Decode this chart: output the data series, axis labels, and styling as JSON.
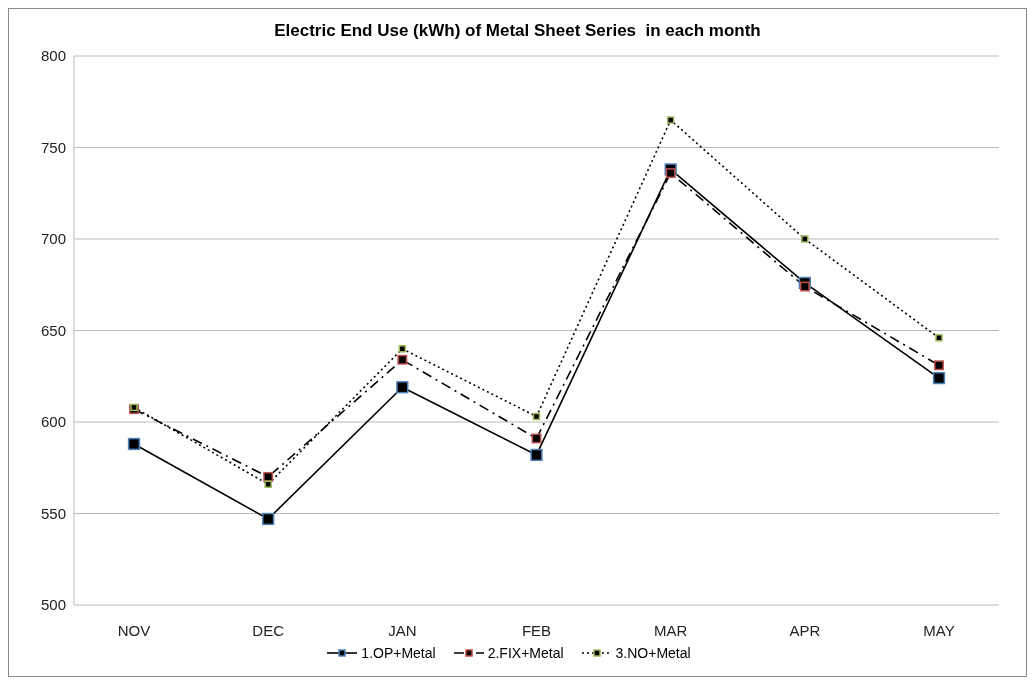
{
  "chart_data": {
    "type": "line",
    "title": "Electric End Use (kWh) of Metal Sheet Series  in each month",
    "categories": [
      "NOV",
      "DEC",
      "JAN",
      "FEB",
      "MAR",
      "APR",
      "MAY"
    ],
    "series": [
      {
        "name": "1.OP+Metal",
        "color": "#4f81bd",
        "line_style": "solid",
        "values": [
          588,
          547,
          619,
          582,
          738,
          676,
          624
        ]
      },
      {
        "name": "2.FIX+Metal",
        "color": "#c0504d",
        "line_style": "dashed",
        "values": [
          607,
          570,
          634,
          591,
          736,
          674,
          631
        ]
      },
      {
        "name": "3.NO+Metal",
        "color": "#9bbb59",
        "line_style": "dotted",
        "values": [
          608,
          566,
          640,
          603,
          765,
          700,
          646
        ]
      }
    ],
    "ylim": [
      500,
      800
    ],
    "yticks": [
      500,
      550,
      600,
      650,
      700,
      750,
      800
    ],
    "grid": "y",
    "legend": "bottom",
    "marker": "square"
  }
}
